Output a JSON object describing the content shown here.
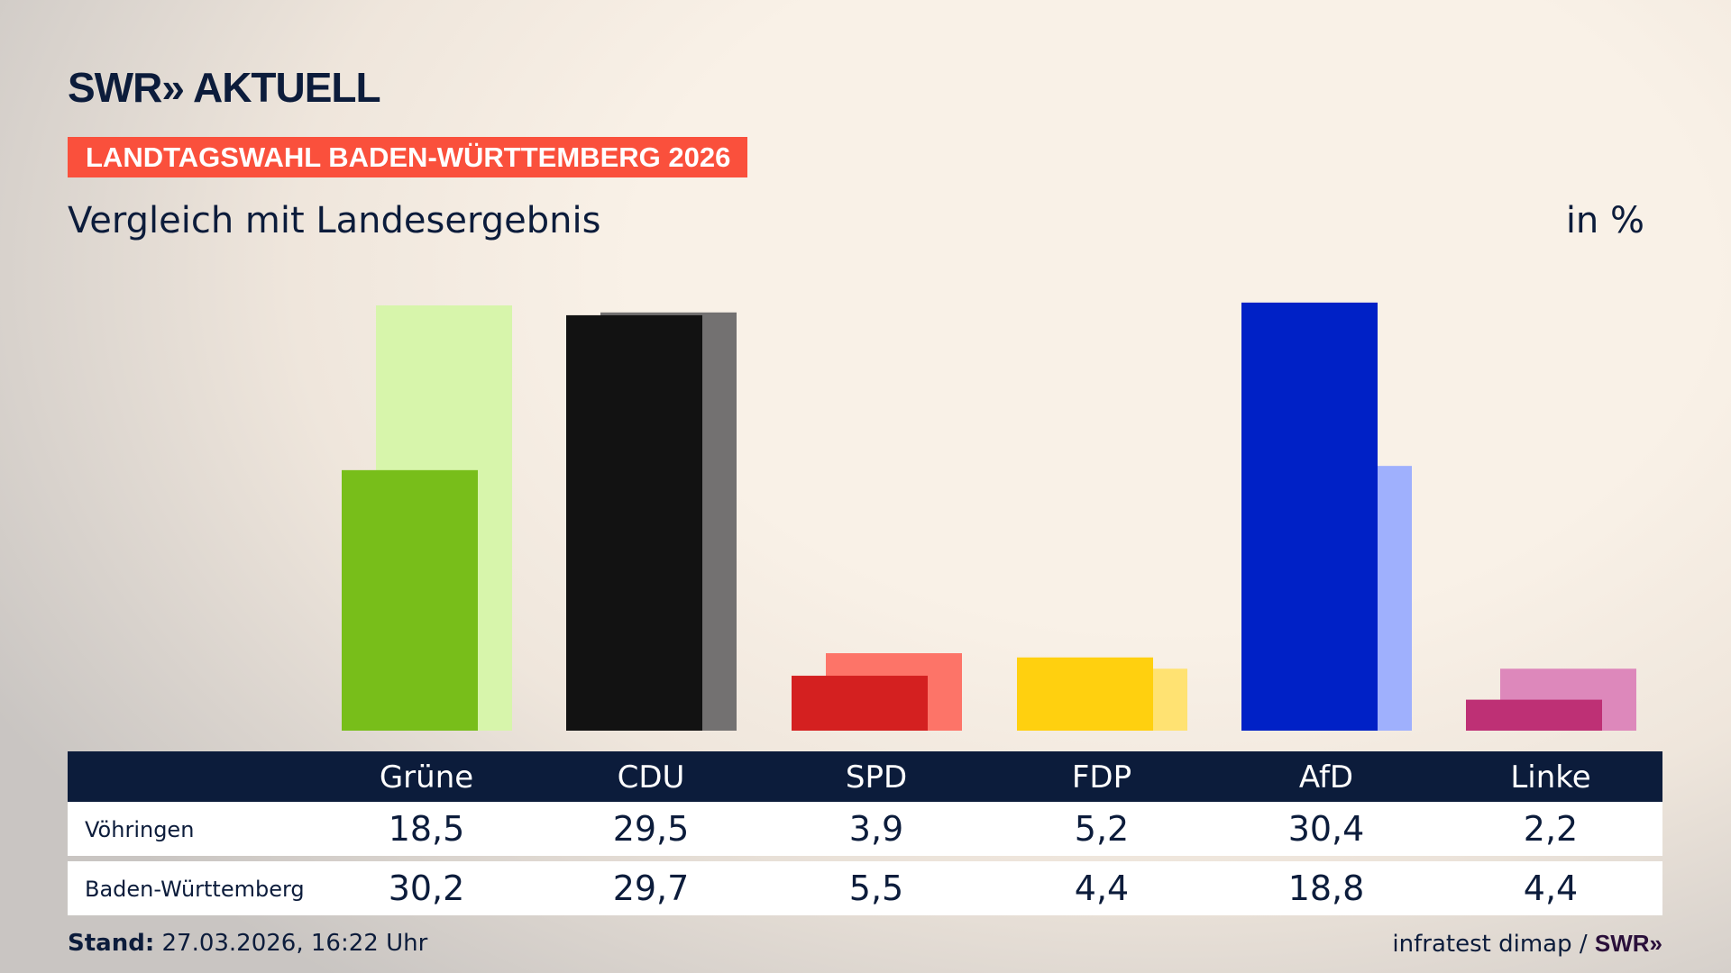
{
  "header": {
    "logo": "SWR» AKTUELL",
    "badge": "LANDTAGSWAHL BADEN-WÜRTTEMBERG 2026",
    "subtitle": "Vergleich mit Landesergebnis",
    "unit": "in %"
  },
  "chart_data": {
    "type": "bar",
    "categories": [
      "Grüne",
      "CDU",
      "SPD",
      "FDP",
      "AfD",
      "Linke"
    ],
    "series": [
      {
        "name": "Vöhringen",
        "values": [
          18.5,
          29.5,
          3.9,
          5.2,
          30.4,
          2.2
        ],
        "colors": [
          "#78be1a",
          "#121212",
          "#d42020",
          "#ffd00f",
          "#0021c6",
          "#be3075"
        ]
      },
      {
        "name": "Baden-Württemberg",
        "values": [
          30.2,
          29.7,
          5.5,
          4.4,
          18.8,
          4.4
        ],
        "colors": [
          "#d7f5ab",
          "#737171",
          "#fd7468",
          "#ffe272",
          "#9fb0fd",
          "#dd88bb"
        ]
      }
    ],
    "ylim": [
      0,
      31
    ]
  },
  "footer": {
    "stand_label": "Stand:",
    "stand_value": " 27.03.2026, 16:22 Uhr",
    "source": "infratest dimap / ",
    "source_logo": "SWR»"
  }
}
